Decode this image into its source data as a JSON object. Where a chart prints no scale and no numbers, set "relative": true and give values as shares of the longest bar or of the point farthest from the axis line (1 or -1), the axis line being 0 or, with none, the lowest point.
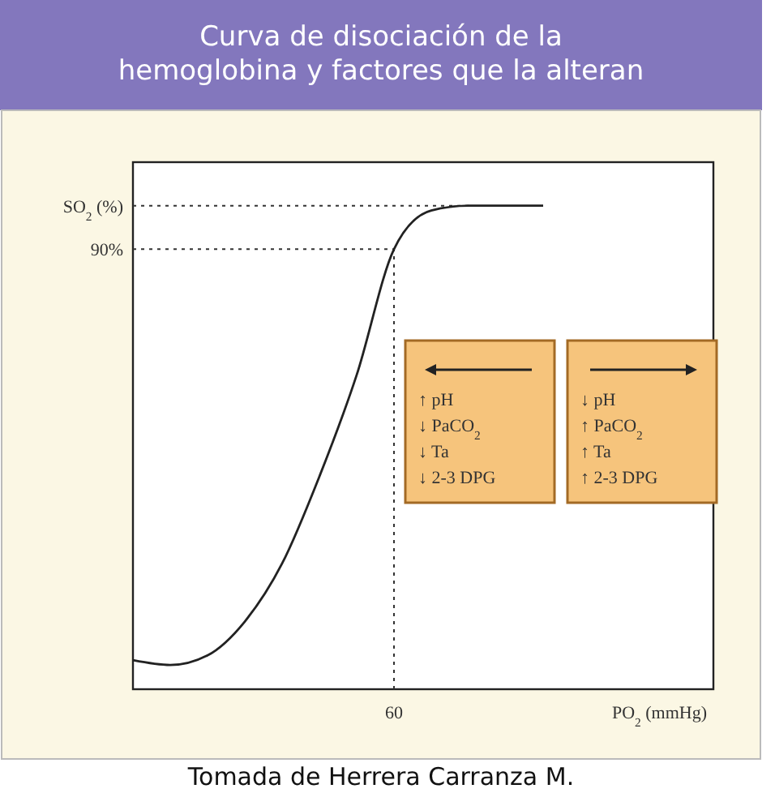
{
  "chart_data": {
    "type": "line",
    "title": "Curva de disociación de la hemoglobina y factores que la alteran",
    "xlabel": "PO$_{2}$ (mmHg)",
    "ylabel": "SO$_{2}$ (%)",
    "relative": true,
    "categories": [
      null,
      null,
      null,
      null,
      null,
      null,
      null,
      null,
      null,
      null,
      null,
      null,
      null,
      null,
      null,
      null
    ],
    "series": [
      {
        "color": "#222222",
        "values": [
          0.06,
          0.05,
          0.07,
          0.14,
          0.26,
          0.44,
          0.65,
          0.91,
          0.99,
          1,
          1,
          1,
          null,
          null,
          null,
          null
        ]
      }
    ],
    "ref_lines": [
      {
        "axis": "y",
        "value": 1,
        "line_style": "dotted"
      },
      {
        "axis": "y",
        "value": 0.91,
        "line_style": "dotted"
      }
    ],
    "annotations": [
      "90%",
      "60",
      "↑ pH",
      "↓ PaCO$_{2}$",
      "↓ Ta",
      "↓ 2-3 DPG",
      "↓ pH",
      "↑ PaCO$_{2}$",
      "↑ Ta",
      "↑ 2-3 DPG",
      "Tomada de Herrera Carranza M."
    ],
    "marker": "none",
    "line_style": "solid"
  }
}
